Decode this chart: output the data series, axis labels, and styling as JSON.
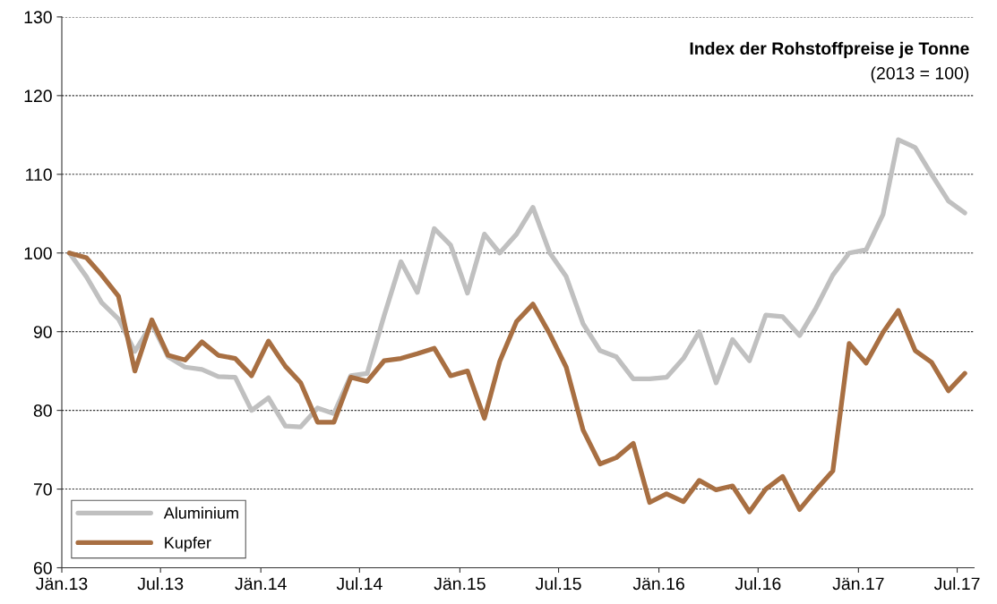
{
  "chart_data": {
    "type": "line",
    "title": "Index der Rohstoffpreise je Tonne",
    "subtitle": "(2013 = 100)",
    "x": [
      "2013-01-15",
      "2013-02-15",
      "2013-03-15",
      "2013-04-15",
      "2013-05-15",
      "2013-06-15",
      "2013-07-15",
      "2013-08-15",
      "2013-09-15",
      "2013-10-15",
      "2013-11-15",
      "2013-12-15",
      "2014-01-15",
      "2014-02-15",
      "2014-03-15",
      "2014-04-15",
      "2014-05-15",
      "2014-06-15",
      "2014-07-15",
      "2014-08-15",
      "2014-09-15",
      "2014-10-15",
      "2014-11-15",
      "2014-12-15",
      "2015-01-15",
      "2015-02-15",
      "2015-03-15",
      "2015-04-15",
      "2015-05-15",
      "2015-06-15",
      "2015-07-15",
      "2015-08-15",
      "2015-09-15",
      "2015-10-15",
      "2015-11-15",
      "2015-12-15",
      "2016-01-15",
      "2016-02-15",
      "2016-03-15",
      "2016-04-15",
      "2016-05-15",
      "2016-06-15",
      "2016-07-15",
      "2016-08-15",
      "2016-09-15",
      "2016-10-15",
      "2016-11-15",
      "2016-12-15",
      "2017-01-15",
      "2017-02-15",
      "2017-03-15",
      "2017-04-15",
      "2017-05-15",
      "2017-06-15",
      "2017-07-15"
    ],
    "series": [
      {
        "name": "Aluminium",
        "color": "#c0c0c0",
        "values": [
          100,
          97,
          93.7,
          91.6,
          87.5,
          91,
          86.8,
          85.5,
          85.2,
          84.3,
          84.2,
          80,
          81.6,
          78,
          77.9,
          80.3,
          79.6,
          84.4,
          84.7,
          92,
          98.9,
          95,
          103.1,
          101,
          94.9,
          102.4,
          100,
          102.4,
          105.8,
          100,
          97,
          91,
          87.6,
          86.8,
          84,
          84,
          84.2,
          86.6,
          90,
          83.5,
          89,
          86.3,
          92.1,
          91.9,
          89.5,
          93,
          97.2,
          100,
          100.4,
          104.9,
          114.4,
          113.4,
          110,
          106.6,
          105.1
        ]
      },
      {
        "name": "Kupfer",
        "color": "#a86f42",
        "values": [
          100,
          99.4,
          97.2,
          94.5,
          85,
          91.5,
          87,
          86.4,
          88.7,
          87,
          86.6,
          84.4,
          88.8,
          85.6,
          83.5,
          78.5,
          78.5,
          84.2,
          83.7,
          86.3,
          86.6,
          87.2,
          87.9,
          84.4,
          85,
          79,
          86.2,
          91.3,
          93.5,
          89.7,
          85.5,
          77.5,
          73.2,
          74,
          75.8,
          68.3,
          69.4,
          68.4,
          71.1,
          69.9,
          70.4,
          67.1,
          70,
          71.6,
          67.4,
          69.9,
          72.3,
          88.5,
          86,
          89.9,
          92.7,
          87.6,
          86.1,
          82.5,
          84.7
        ]
      }
    ],
    "xlim": [
      "2013-01-01",
      "2017-08-01"
    ],
    "xticks": [
      {
        "value": "2013-01-01",
        "label": "Jän.13"
      },
      {
        "value": "2013-07-01",
        "label": "Jul.13"
      },
      {
        "value": "2014-01-01",
        "label": "Jän.14"
      },
      {
        "value": "2014-07-01",
        "label": "Jul.14"
      },
      {
        "value": "2015-01-01",
        "label": "Jän.15"
      },
      {
        "value": "2015-07-01",
        "label": "Jul.15"
      },
      {
        "value": "2016-01-01",
        "label": "Jän.16"
      },
      {
        "value": "2016-07-01",
        "label": "Jul.16"
      },
      {
        "value": "2017-01-01",
        "label": "Jän.17"
      },
      {
        "value": "2017-07-01",
        "label": "Jul.17"
      }
    ],
    "ylim": [
      60,
      130
    ],
    "yticks": [
      60,
      70,
      80,
      90,
      100,
      110,
      120,
      130
    ],
    "grid": "y",
    "legend": "bottom left",
    "marker": "none",
    "line_style": "solid"
  }
}
